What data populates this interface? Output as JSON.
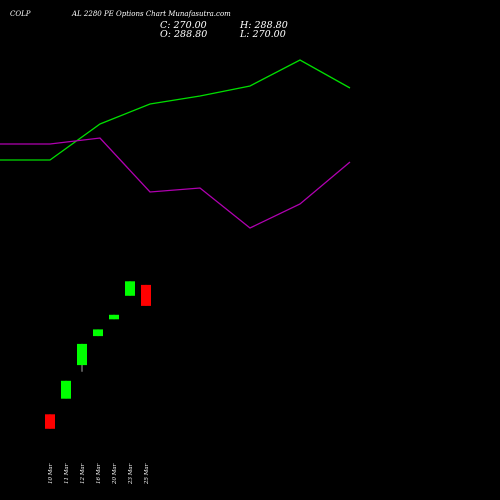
{
  "header": {
    "title_left": "COLP",
    "title_right": "AL 2280 PE Options Chart Munafasutra.com",
    "close_label": "C: 270.00",
    "high_label": "H: 288.80",
    "open_label": "O: 288.80",
    "low_label": "L: 270.00"
  },
  "colors": {
    "background": "#000000",
    "up_candle": "#00ff00",
    "down_candle": "#ff0000",
    "line_green": "#00dd00",
    "line_magenta": "#b000b0",
    "text": "#ffffff"
  },
  "chart_data": {
    "type": "candlestick",
    "title": "COLP AL 2280 PE Options Chart Munafasutra.com",
    "xlabel": "",
    "ylabel": "",
    "categories": [
      "10 Mar",
      "11 Mar",
      "12 Mar",
      "16 Mar",
      "20 Mar",
      "23 Mar",
      "25 Mar"
    ],
    "candles": [
      {
        "date": "10 Mar",
        "open": 173,
        "close": 160,
        "high": 173,
        "low": 160,
        "direction": "down"
      },
      {
        "date": "11 Mar",
        "open": 187,
        "close": 203,
        "high": 203,
        "low": 187,
        "direction": "up"
      },
      {
        "date": "12 Mar",
        "open": 217,
        "close": 236,
        "high": 236,
        "low": 211,
        "direction": "up"
      },
      {
        "date": "16 Mar",
        "open": 243,
        "close": 249,
        "high": 249,
        "low": 243,
        "direction": "up"
      },
      {
        "date": "20 Mar",
        "open": 258,
        "close": 262,
        "high": 262,
        "low": 258,
        "direction": "up"
      },
      {
        "date": "23 Mar",
        "open": 279,
        "close": 292,
        "high": 292,
        "low": 279,
        "direction": "up"
      },
      {
        "date": "25 Mar",
        "open": 288.8,
        "close": 270,
        "high": 288.8,
        "low": 270,
        "direction": "down"
      }
    ],
    "series": [
      {
        "color": "#00dd00",
        "values": [
          {
            "x": 0,
            "y": 80
          },
          {
            "x": 50,
            "y": 80
          },
          {
            "x": 100,
            "y": 62
          },
          {
            "x": 150,
            "y": 52
          },
          {
            "x": 200,
            "y": 48
          },
          {
            "x": 250,
            "y": 43
          },
          {
            "x": 300,
            "y": 30
          },
          {
            "x": 350,
            "y": 44
          }
        ]
      },
      {
        "color": "#b000b0",
        "values": [
          {
            "x": 0,
            "y": 72
          },
          {
            "x": 50,
            "y": 72
          },
          {
            "x": 100,
            "y": 69
          },
          {
            "x": 150,
            "y": 96
          },
          {
            "x": 200,
            "y": 94
          },
          {
            "x": 250,
            "y": 114
          },
          {
            "x": 300,
            "y": 102
          },
          {
            "x": 350,
            "y": 81
          }
        ]
      }
    ],
    "grid": false,
    "legend": "none"
  }
}
